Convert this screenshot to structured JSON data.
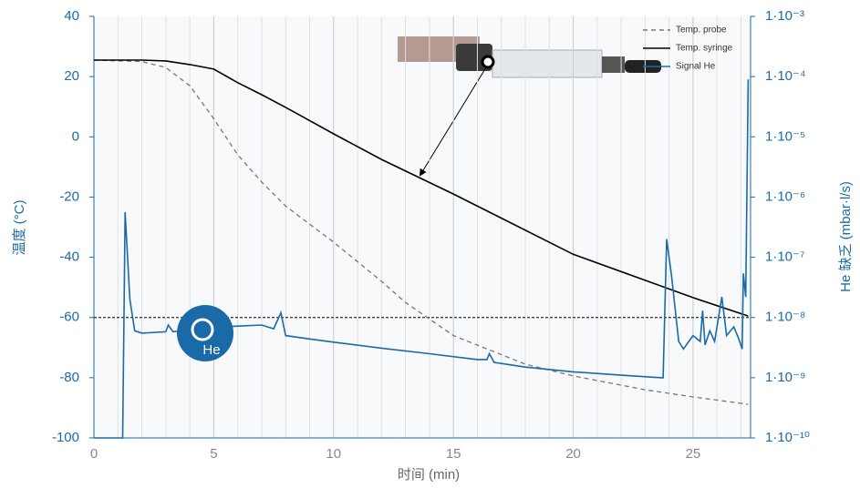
{
  "chart_data": {
    "type": "line",
    "xlabel": "时间 (min)",
    "ylabel": "温度 (°C)",
    "y2label": "He 缺乏 (mbar·l/s)",
    "xlim": [
      0,
      27.4
    ],
    "xticks": [
      0,
      5,
      10,
      15,
      20,
      25
    ],
    "xgrid_step": 1,
    "ylim": [
      -100,
      40
    ],
    "yticks": [
      -100,
      -80,
      -60,
      -40,
      -20,
      0,
      20,
      40
    ],
    "y2lim": [
      1e-10,
      0.001
    ],
    "y2log": true,
    "y2ticks": [
      {
        "value": 1e-10,
        "label": "1·10⁻¹⁰"
      },
      {
        "value": 1e-09,
        "label": "1·10⁻⁹"
      },
      {
        "value": 1e-08,
        "label": "1·10⁻⁸"
      },
      {
        "value": 1e-07,
        "label": "1·10⁻⁷"
      },
      {
        "value": 1e-06,
        "label": "1·10⁻⁶"
      },
      {
        "value": 1e-05,
        "label": "1·10⁻⁵"
      },
      {
        "value": 0.0001,
        "label": "1·10⁻⁴"
      },
      {
        "value": 0.001,
        "label": "1·10⁻³"
      }
    ],
    "hline": -60,
    "annotation": "He",
    "legend": "top-right",
    "series": [
      {
        "name": "Temp. probe",
        "color": "#777777",
        "dashed": true,
        "x": [
          0,
          2,
          3,
          4,
          5,
          6,
          7,
          8,
          10,
          12,
          13,
          15,
          18,
          20,
          23,
          25,
          27.3
        ],
        "values": [
          25.5,
          25,
          23,
          17,
          6,
          -6,
          -15,
          -23,
          -35,
          -48,
          -55,
          -66,
          -75.5,
          -79.4,
          -84,
          -86.4,
          -88.8
        ]
      },
      {
        "name": "Temp. syringe",
        "color": "#000000",
        "dashed": false,
        "x": [
          0,
          2,
          3,
          4,
          5,
          6,
          7,
          8,
          10,
          12,
          15,
          20,
          25,
          27.3
        ],
        "values": [
          25.5,
          25.5,
          25.2,
          24,
          22.5,
          18,
          14,
          9.8,
          1,
          -7.5,
          -19,
          -39,
          -53.4,
          -59.5
        ]
      },
      {
        "name": "Signal He",
        "color": "#1a6aa8",
        "dashed": false,
        "axis": "y2",
        "x": [
          0,
          1.2,
          1.3,
          1.5,
          1.7,
          2,
          3,
          3.1,
          3.3,
          4,
          5,
          6,
          7,
          7.5,
          7.8,
          8,
          9,
          10,
          12,
          14,
          16,
          16.4,
          16.5,
          16.7,
          18,
          20,
          22,
          23.7,
          23.75,
          23.9,
          24.1,
          24.4,
          24.6,
          25,
          25.3,
          25.4,
          25.5,
          25.7,
          25.9,
          26.2,
          26.4,
          26.7,
          26.9,
          27.05,
          27.1,
          27.2,
          27.3
        ],
        "values": [
          1e-10,
          1e-10,
          5.6e-07,
          2e-08,
          6e-09,
          5.5e-09,
          5.8e-09,
          7.5e-09,
          5.8e-09,
          6.2e-09,
          6.8e-09,
          7.2e-09,
          7.5e-09,
          6.5e-09,
          1.2e-08,
          5e-09,
          4.4e-09,
          3.9e-09,
          3.1e-09,
          2.5e-09,
          2e-09,
          2e-09,
          2.5e-09,
          1.8e-09,
          1.5e-09,
          1.25e-09,
          1.1e-09,
          1e-09,
          1e-09,
          2e-07,
          5e-08,
          4e-09,
          3e-09,
          5e-09,
          4e-09,
          1.3e-08,
          3.5e-09,
          6e-09,
          4e-09,
          2.2e-08,
          5e-09,
          7e-09,
          4.5e-09,
          3e-09,
          5.4e-08,
          2.2e-08,
          9e-05
        ]
      }
    ]
  }
}
